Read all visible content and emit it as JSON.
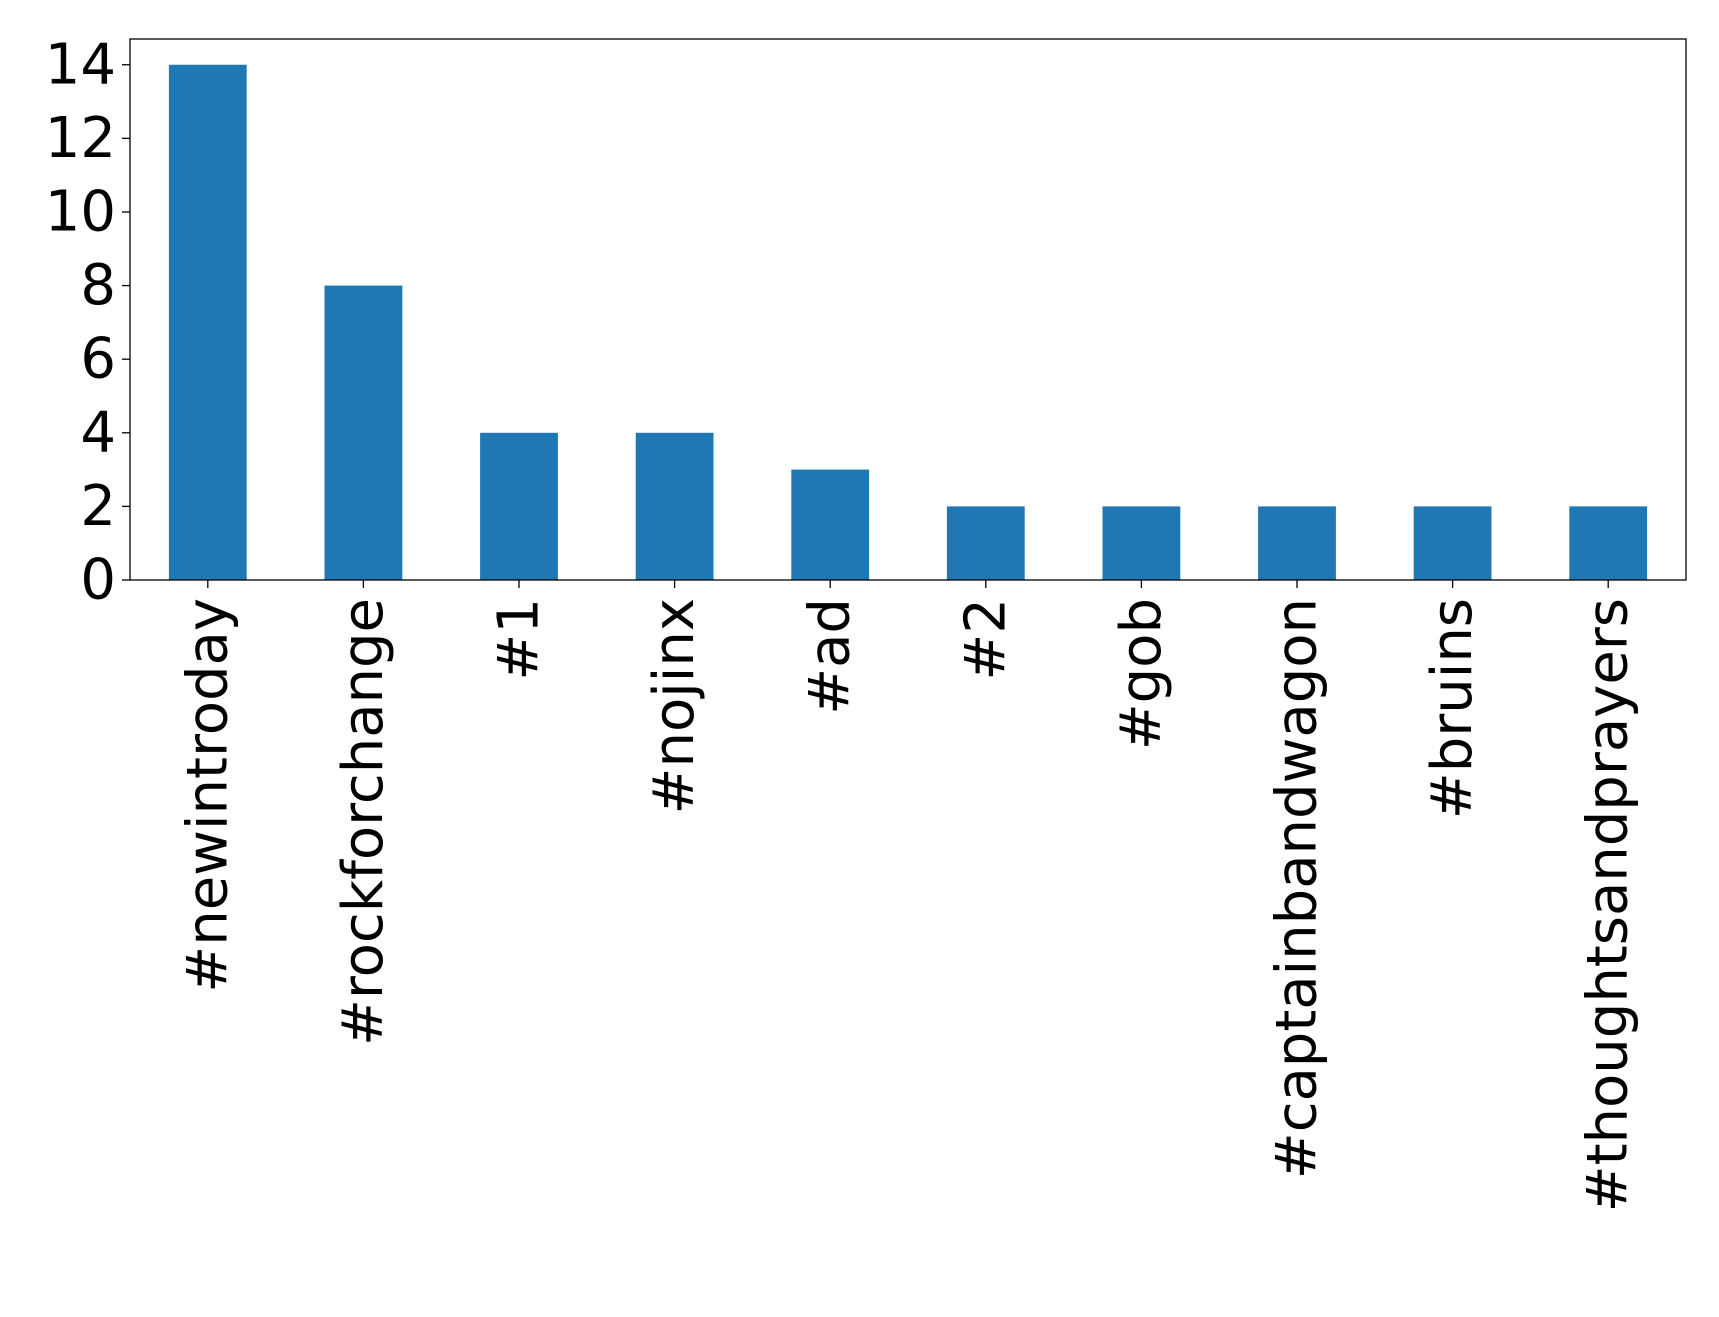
{
  "chart_data": {
    "type": "bar",
    "title": "",
    "xlabel": "",
    "ylabel": "",
    "categories": [
      "#newintroday",
      "#rockforchange",
      "#1",
      "#nojinx",
      "#ad",
      "#2",
      "#gob",
      "#captainbandwagon",
      "#bruins",
      "#thoughtsandprayers"
    ],
    "values": [
      14,
      8,
      4,
      4,
      3,
      2,
      2,
      2,
      2,
      2
    ],
    "ylim": [
      0,
      14.7
    ],
    "yticks": [
      0,
      2,
      4,
      6,
      8,
      10,
      12,
      14
    ],
    "ytick_labels": [
      "0",
      "2",
      "4",
      "6",
      "8",
      "10",
      "12",
      "14"
    ],
    "bar_color": "#1f77b4",
    "grid": false,
    "legend": "none"
  }
}
